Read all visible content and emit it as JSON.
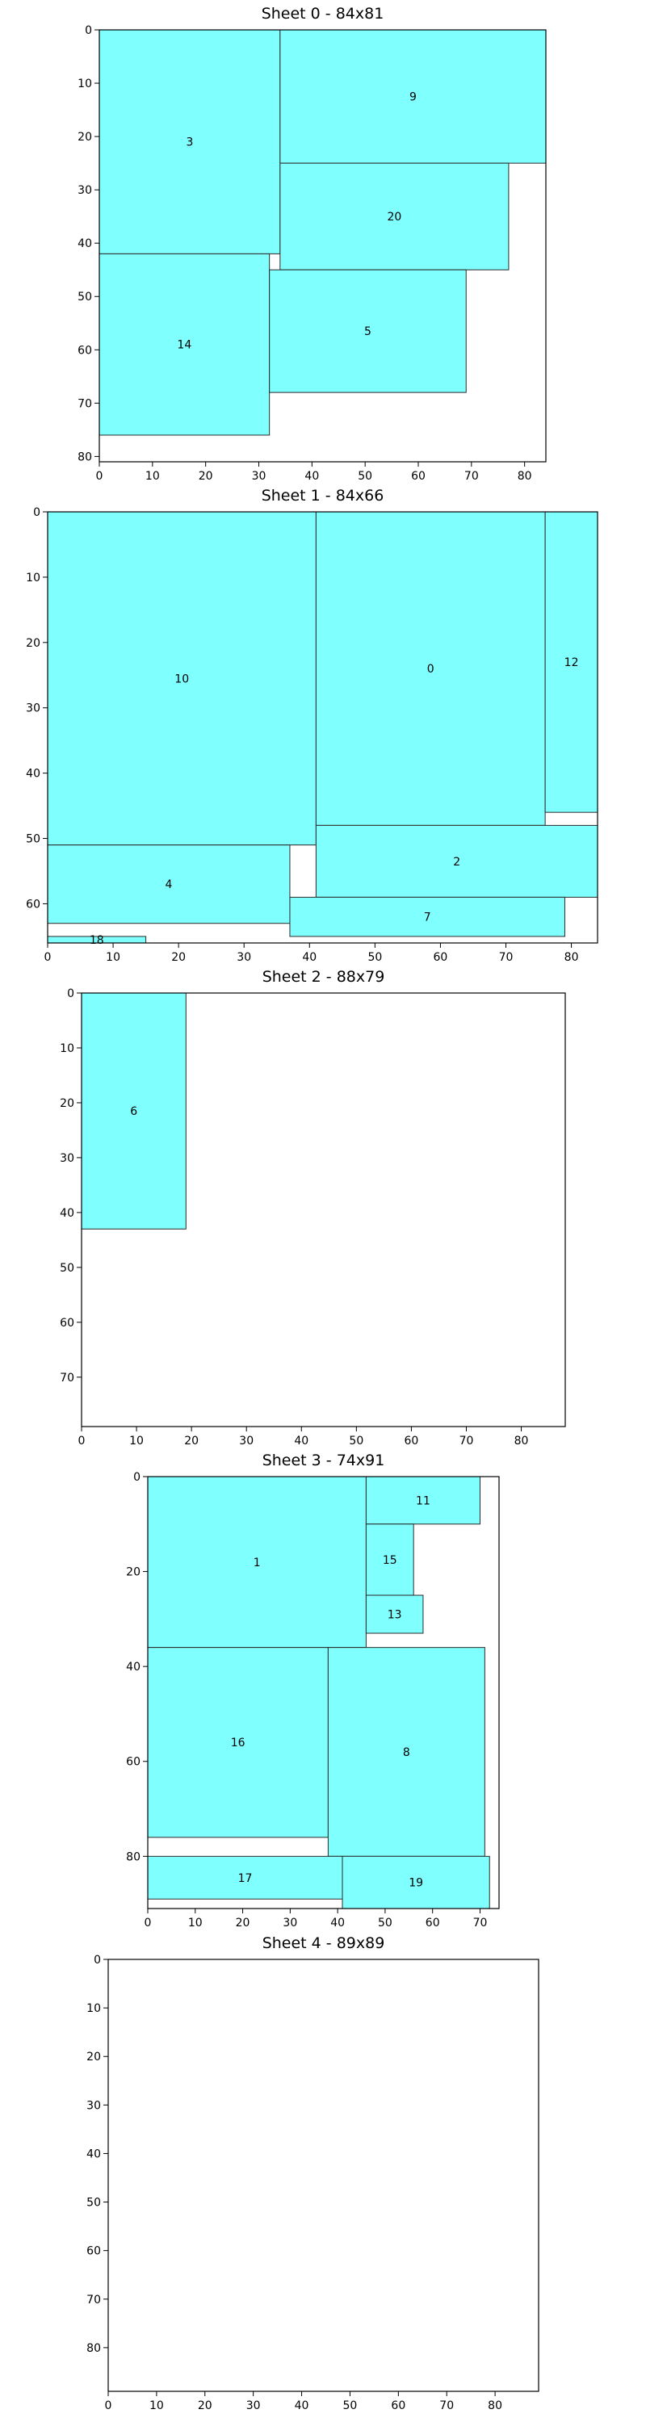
{
  "colors": {
    "piece_fill": "#80ffff",
    "piece_edge": "#2a2a2a",
    "frame": "#000000"
  },
  "chart_data": [
    {
      "type": "rectangles",
      "title": "Sheet 0 - 84x81",
      "sheet_width": 84,
      "sheet_height": 81,
      "x_ticks": [
        0,
        10,
        20,
        30,
        40,
        50,
        60,
        70,
        80
      ],
      "y_ticks": [
        0,
        10,
        20,
        30,
        40,
        50,
        60,
        70,
        80
      ],
      "pieces": [
        {
          "id": "3",
          "x": 0,
          "y": 0,
          "w": 34,
          "h": 42
        },
        {
          "id": "9",
          "x": 34,
          "y": 0,
          "w": 50,
          "h": 25
        },
        {
          "id": "20",
          "x": 34,
          "y": 25,
          "w": 43,
          "h": 20
        },
        {
          "id": "14",
          "x": 0,
          "y": 42,
          "w": 32,
          "h": 34
        },
        {
          "id": "5",
          "x": 32,
          "y": 45,
          "w": 37,
          "h": 23
        }
      ]
    },
    {
      "type": "rectangles",
      "title": "Sheet 1 - 84x66",
      "sheet_width": 84,
      "sheet_height": 66,
      "x_ticks": [
        0,
        10,
        20,
        30,
        40,
        50,
        60,
        70,
        80
      ],
      "y_ticks": [
        0,
        10,
        20,
        30,
        40,
        50,
        60
      ],
      "pieces": [
        {
          "id": "10",
          "x": 0,
          "y": 0,
          "w": 41,
          "h": 51
        },
        {
          "id": "0",
          "x": 41,
          "y": 0,
          "w": 35,
          "h": 48
        },
        {
          "id": "12",
          "x": 76,
          "y": 0,
          "w": 8,
          "h": 46
        },
        {
          "id": "4",
          "x": 0,
          "y": 51,
          "w": 37,
          "h": 12
        },
        {
          "id": "2",
          "x": 41,
          "y": 48,
          "w": 43,
          "h": 11
        },
        {
          "id": "7",
          "x": 37,
          "y": 59,
          "w": 42,
          "h": 6
        },
        {
          "id": "18",
          "x": 0,
          "y": 65,
          "w": 15,
          "h": 1
        }
      ]
    },
    {
      "type": "rectangles",
      "title": "Sheet 2 - 88x79",
      "sheet_width": 88,
      "sheet_height": 79,
      "x_ticks": [
        0,
        10,
        20,
        30,
        40,
        50,
        60,
        70,
        80
      ],
      "y_ticks": [
        0,
        10,
        20,
        30,
        40,
        50,
        60,
        70
      ],
      "pieces": [
        {
          "id": "6",
          "x": 0,
          "y": 0,
          "w": 19,
          "h": 43
        }
      ]
    },
    {
      "type": "rectangles",
      "title": "Sheet 3 - 74x91",
      "sheet_width": 74,
      "sheet_height": 91,
      "x_ticks": [
        0,
        10,
        20,
        30,
        40,
        50,
        60,
        70
      ],
      "y_ticks": [
        0,
        20,
        40,
        60,
        80
      ],
      "pieces": [
        {
          "id": "1",
          "x": 0,
          "y": 0,
          "w": 46,
          "h": 36
        },
        {
          "id": "11",
          "x": 46,
          "y": 0,
          "w": 24,
          "h": 10
        },
        {
          "id": "15",
          "x": 46,
          "y": 10,
          "w": 10,
          "h": 15
        },
        {
          "id": "13",
          "x": 46,
          "y": 25,
          "w": 12,
          "h": 8
        },
        {
          "id": "16",
          "x": 0,
          "y": 36,
          "w": 38,
          "h": 40
        },
        {
          "id": "8",
          "x": 38,
          "y": 36,
          "w": 33,
          "h": 44
        },
        {
          "id": "17",
          "x": 0,
          "y": 80,
          "w": 41,
          "h": 9
        },
        {
          "id": "19",
          "x": 41,
          "y": 80,
          "w": 31,
          "h": 11
        }
      ]
    },
    {
      "type": "rectangles",
      "title": "Sheet 4 - 89x89",
      "sheet_width": 89,
      "sheet_height": 89,
      "x_ticks": [
        0,
        10,
        20,
        30,
        40,
        50,
        60,
        70,
        80
      ],
      "y_ticks": [
        0,
        10,
        20,
        30,
        40,
        50,
        60,
        70,
        80
      ],
      "pieces": []
    }
  ]
}
